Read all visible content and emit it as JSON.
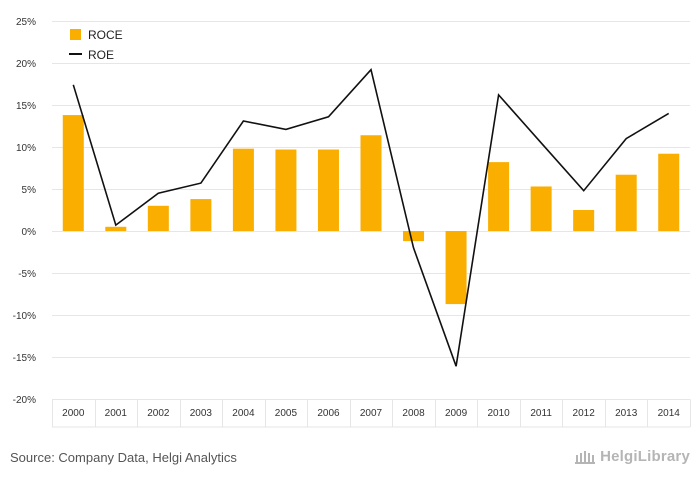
{
  "chart_data": {
    "type": "bar",
    "title": "",
    "xlabel": "",
    "ylabel": "",
    "categories": [
      "2000",
      "2001",
      "2002",
      "2003",
      "2004",
      "2005",
      "2006",
      "2007",
      "2008",
      "2009",
      "2010",
      "2011",
      "2012",
      "2013",
      "2014"
    ],
    "series": [
      {
        "name": "ROCE",
        "type": "bar",
        "color": "#f9ae00",
        "values": [
          13.8,
          0.5,
          3.0,
          3.8,
          9.8,
          9.7,
          9.7,
          11.4,
          -1.2,
          -8.7,
          8.2,
          5.3,
          2.5,
          6.7,
          9.2
        ]
      },
      {
        "name": "ROE",
        "type": "line",
        "color": "#111111",
        "values": [
          17.4,
          0.7,
          4.5,
          5.7,
          13.1,
          12.1,
          13.6,
          19.2,
          -2.0,
          -16.1,
          16.2,
          10.5,
          4.8,
          11.0,
          14.0
        ]
      }
    ],
    "ylim": [
      -20,
      25
    ],
    "yticks": [
      -20,
      -15,
      -10,
      -5,
      0,
      5,
      10,
      15,
      20,
      25
    ],
    "ytick_labels": [
      "-20%",
      "-15%",
      "-10%",
      "-5%",
      "0%",
      "5%",
      "10%",
      "15%",
      "20%",
      "25%"
    ],
    "grid": true,
    "legend_position": "top-left"
  },
  "footer": {
    "source": "Source: Company Data, Helgi Analytics",
    "brand": "HelgiLibrary"
  },
  "colors": {
    "bar": "#f9ae00",
    "line": "#111111",
    "grid": "#e6e6e6",
    "brand": "#b5b5b5"
  }
}
